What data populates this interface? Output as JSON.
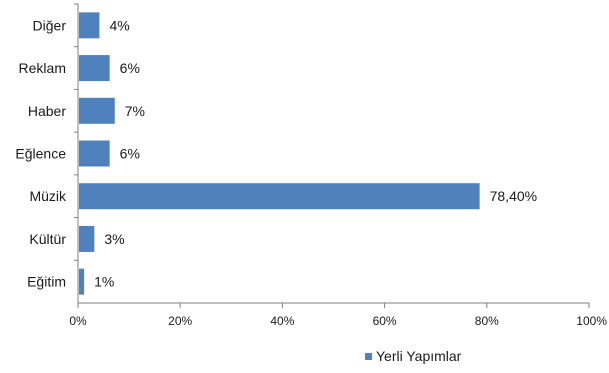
{
  "chart_data": {
    "type": "bar",
    "orientation": "horizontal",
    "categories": [
      "Diğer",
      "Reklam",
      "Haber",
      "Eğlence",
      "Müzik",
      "Kültür",
      "Eğitim"
    ],
    "series": [
      {
        "name": "Yerli Yapımlar",
        "values": [
          4,
          6,
          7,
          6,
          78.4,
          3,
          1
        ],
        "data_labels": [
          "4%",
          "6%",
          "7%",
          "6%",
          "78,40%",
          "3%",
          "1%"
        ],
        "color": "#4f81bd"
      }
    ],
    "xlim": [
      0,
      100
    ],
    "x_ticks": [
      0,
      20,
      40,
      60,
      80,
      100
    ],
    "x_tick_labels": [
      "0%",
      "20%",
      "40%",
      "60%",
      "80%",
      "100%"
    ],
    "grid": false,
    "legend_position": "bottom"
  }
}
